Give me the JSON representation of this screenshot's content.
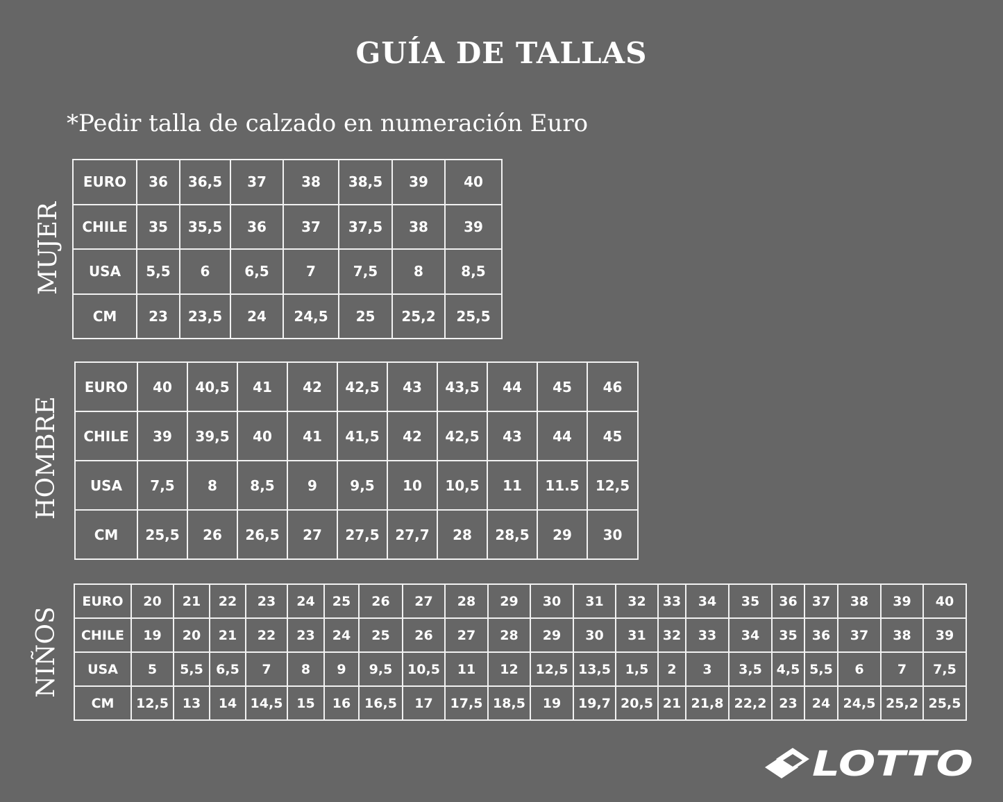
{
  "title": "GUÍA DE TALLAS",
  "subtitle": "*Pedir talla de calzado en numeración Euro",
  "tables": {
    "mujer": {
      "label": "MUJER",
      "rows": [
        {
          "header": "EURO",
          "values": [
            "36",
            "36,5",
            "37",
            "38",
            "38,5",
            "39",
            "40"
          ]
        },
        {
          "header": "CHILE",
          "values": [
            "35",
            "35,5",
            "36",
            "37",
            "37,5",
            "38",
            "39"
          ]
        },
        {
          "header": "USA",
          "values": [
            "5,5",
            "6",
            "6,5",
            "7",
            "7,5",
            "8",
            "8,5"
          ]
        },
        {
          "header": "CM",
          "values": [
            "23",
            "23,5",
            "24",
            "24,5",
            "25",
            "25,2",
            "25,5"
          ]
        }
      ]
    },
    "hombre": {
      "label": "HOMBRE",
      "rows": [
        {
          "header": "EURO",
          "values": [
            "40",
            "40,5",
            "41",
            "42",
            "42,5",
            "43",
            "43,5",
            "44",
            "45",
            "46"
          ]
        },
        {
          "header": "CHILE",
          "values": [
            "39",
            "39,5",
            "40",
            "41",
            "41,5",
            "42",
            "42,5",
            "43",
            "44",
            "45"
          ]
        },
        {
          "header": "USA",
          "values": [
            "7,5",
            "8",
            "8,5",
            "9",
            "9,5",
            "10",
            "10,5",
            "11",
            "11.5",
            "12,5"
          ]
        },
        {
          "header": "CM",
          "values": [
            "25,5",
            "26",
            "26,5",
            "27",
            "27,5",
            "27,7",
            "28",
            "28,5",
            "29",
            "30"
          ]
        }
      ]
    },
    "ninos": {
      "label": "NIÑOS",
      "rows": [
        {
          "header": "EURO",
          "values": [
            "20",
            "21",
            "22",
            "23",
            "24",
            "25",
            "26",
            "27",
            "28",
            "29",
            "30",
            "31",
            "32",
            "33",
            "34",
            "35",
            "36",
            "37",
            "38",
            "39",
            "40"
          ]
        },
        {
          "header": "CHILE",
          "values": [
            "19",
            "20",
            "21",
            "22",
            "23",
            "24",
            "25",
            "26",
            "27",
            "28",
            "29",
            "30",
            "31",
            "32",
            "33",
            "34",
            "35",
            "36",
            "37",
            "38",
            "39"
          ]
        },
        {
          "header": "USA",
          "values": [
            "5",
            "5,5",
            "6,5",
            "7",
            "8",
            "9",
            "9,5",
            "10,5",
            "11",
            "12",
            "12,5",
            "13,5",
            "1,5",
            "2",
            "3",
            "3,5",
            "4,5",
            "5,5",
            "6",
            "7",
            "7,5"
          ]
        },
        {
          "header": "CM",
          "values": [
            "12,5",
            "13",
            "14",
            "14,5",
            "15",
            "16",
            "16,5",
            "17",
            "17,5",
            "18,5",
            "19",
            "19,7",
            "20,5",
            "21",
            "21,8",
            "22,2",
            "23",
            "24",
            "24,5",
            "25,2",
            "25,5"
          ]
        }
      ]
    }
  },
  "logo": {
    "text": "LOTTO",
    "color": "#ffffff"
  },
  "colors": {
    "background": "#666666",
    "text": "#ffffff",
    "grid": "#f2f2f2"
  }
}
